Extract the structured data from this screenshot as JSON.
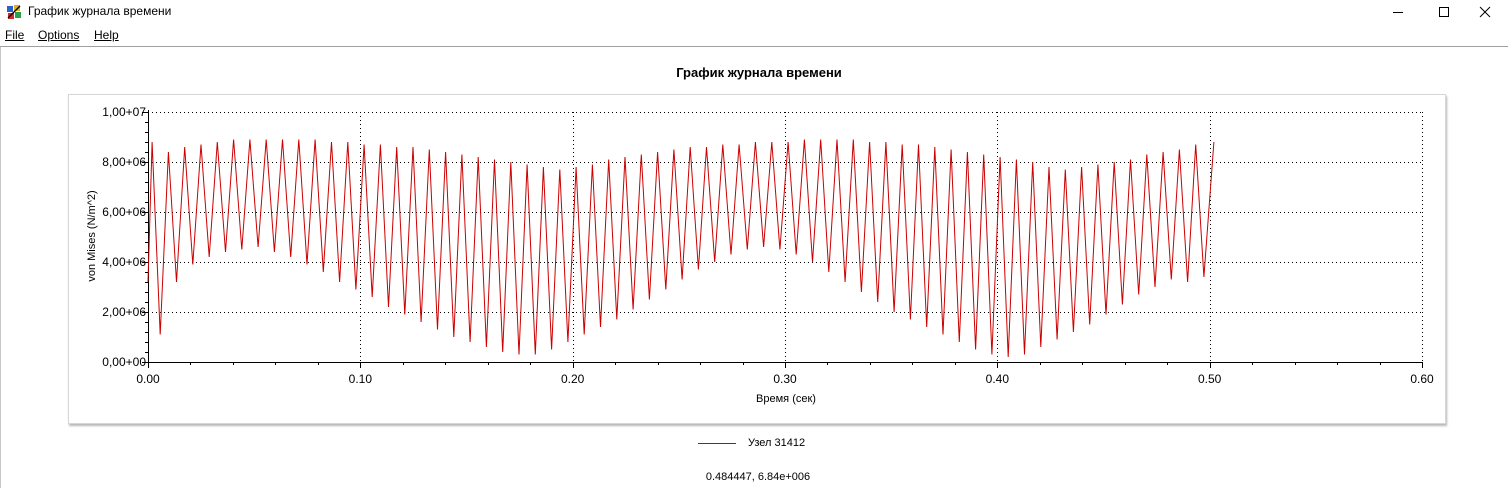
{
  "window": {
    "title": "График журнала времени",
    "app_icon": "app-icon"
  },
  "menu": {
    "items": [
      {
        "label": "File"
      },
      {
        "label": "Options"
      },
      {
        "label": "Help"
      }
    ]
  },
  "chart_data": {
    "type": "line",
    "title": "График журнала времени",
    "xlabel": "Время (сек)",
    "ylabel": "von Mises (N/m^2)",
    "xlim": [
      0,
      0.6
    ],
    "ylim": [
      0,
      10000000
    ],
    "x_ticks": [
      "0.00",
      "0.10",
      "0.20",
      "0.30",
      "0.40",
      "0.50",
      "0.60"
    ],
    "y_ticks": [
      "0,00+00",
      "2,00+06",
      "4,00+06",
      "6,00+06",
      "8,00+06",
      "1,00+07"
    ],
    "grid": true,
    "legend_position": "bottom-center",
    "series": [
      {
        "name": "Узел 31412",
        "color": "#cc0000",
        "x_start": 0.0,
        "x_end": 0.502,
        "cycle_period": 0.00768,
        "peaks": [
          8800000.0,
          8400000.0,
          8600000.0,
          8700000.0,
          8800000.0,
          8900000.0,
          8900000.0,
          8900000.0,
          8900000.0,
          8900000.0,
          8900000.0,
          8800000.0,
          8800000.0,
          8700000.0,
          8700000.0,
          8600000.0,
          8600000.0,
          8500000.0,
          8400000.0,
          8300000.0,
          8200000.0,
          8100000.0,
          8000000.0,
          7900000.0,
          7800000.0,
          7700000.0,
          7800000.0,
          7900000.0,
          8100000.0,
          8200000.0,
          8300000.0,
          8400000.0,
          8500000.0,
          8600000.0,
          8600000.0,
          8700000.0,
          8700000.0,
          8800000.0,
          8800000.0,
          8800000.0,
          8900000.0,
          8900000.0,
          8900000.0,
          8900000.0,
          8800000.0,
          8800000.0,
          8700000.0,
          8700000.0,
          8600000.0,
          8500000.0,
          8400000.0,
          8300000.0,
          8200000.0,
          8100000.0,
          8000000.0,
          7800000.0,
          7700000.0,
          7800000.0,
          7900000.0,
          8000000.0,
          8100000.0,
          8300000.0,
          8400000.0,
          8500000.0,
          8700000.0,
          8800000.0
        ],
        "troughs": [
          1100000.0,
          3200000.0,
          3900000.0,
          4200000.0,
          4400000.0,
          4500000.0,
          4600000.0,
          4400000.0,
          4200000.0,
          3900000.0,
          3600000.0,
          3200000.0,
          2900000.0,
          2600000.0,
          2200000.0,
          1900000.0,
          1600000.0,
          1300000.0,
          1000000.0,
          800000.0,
          600000.0,
          400000.0,
          300000.0,
          300000.0,
          500000.0,
          800000.0,
          1100000.0,
          1400000.0,
          1700000.0,
          2100000.0,
          2500000.0,
          2900000.0,
          3300000.0,
          3700000.0,
          4000000.0,
          4300000.0,
          4500000.0,
          4600000.0,
          4500000.0,
          4300000.0,
          4000000.0,
          3600000.0,
          3200000.0,
          2800000.0,
          2400000.0,
          2000000.0,
          1700000.0,
          1400000.0,
          1100000.0,
          800000.0,
          500000.0,
          300000.0,
          200000.0,
          300000.0,
          600000.0,
          900000.0,
          1200000.0,
          1500000.0,
          1900000.0,
          2300000.0,
          2700000.0,
          3000000.0,
          3300000.0,
          3200000.0,
          3400000.0
        ]
      }
    ]
  },
  "legend": {
    "items": [
      {
        "label": "Узел 31412"
      }
    ]
  },
  "status": {
    "cursor_readout": "0.484447, 6.84e+006"
  }
}
